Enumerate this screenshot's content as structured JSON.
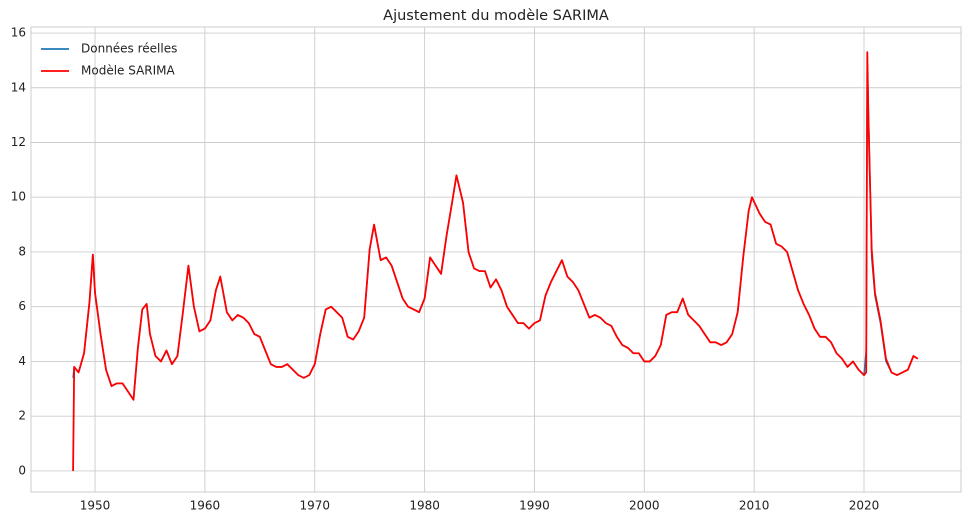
{
  "chart_data": {
    "type": "line",
    "title": "Ajustement du modèle SARIMA",
    "x": [
      1948.0,
      1948.1,
      1948.5,
      1949.0,
      1949.5,
      1949.8,
      1950.0,
      1950.5,
      1951.0,
      1951.5,
      1952.0,
      1952.5,
      1953.0,
      1953.5,
      1953.9,
      1954.3,
      1954.7,
      1955.0,
      1955.5,
      1956.0,
      1956.5,
      1957.0,
      1957.5,
      1958.0,
      1958.5,
      1959.0,
      1959.5,
      1960.0,
      1960.5,
      1961.0,
      1961.4,
      1962.0,
      1962.5,
      1963.0,
      1963.5,
      1964.0,
      1964.5,
      1965.0,
      1965.5,
      1966.0,
      1966.5,
      1967.0,
      1967.5,
      1968.0,
      1968.5,
      1969.0,
      1969.5,
      1970.0,
      1970.5,
      1971.0,
      1971.5,
      1972.0,
      1972.5,
      1973.0,
      1973.5,
      1974.0,
      1974.5,
      1975.0,
      1975.4,
      1976.0,
      1976.5,
      1977.0,
      1977.5,
      1978.0,
      1978.5,
      1979.0,
      1979.5,
      1980.0,
      1980.5,
      1981.0,
      1981.5,
      1982.0,
      1982.5,
      1982.9,
      1983.5,
      1984.0,
      1984.5,
      1985.0,
      1985.5,
      1986.0,
      1986.5,
      1987.0,
      1987.5,
      1988.0,
      1988.5,
      1989.0,
      1989.5,
      1990.0,
      1990.5,
      1991.0,
      1991.5,
      1992.0,
      1992.5,
      1993.0,
      1993.5,
      1994.0,
      1994.5,
      1995.0,
      1995.5,
      1996.0,
      1996.5,
      1997.0,
      1997.5,
      1998.0,
      1998.5,
      1999.0,
      1999.5,
      2000.0,
      2000.5,
      2001.0,
      2001.5,
      2002.0,
      2002.5,
      2003.0,
      2003.5,
      2004.0,
      2004.5,
      2005.0,
      2005.5,
      2006.0,
      2006.5,
      2007.0,
      2007.5,
      2008.0,
      2008.5,
      2009.0,
      2009.5,
      2009.8,
      2010.5,
      2011.0,
      2011.5,
      2012.0,
      2012.5,
      2013.0,
      2013.5,
      2014.0,
      2014.5,
      2015.0,
      2015.5,
      2016.0,
      2016.5,
      2017.0,
      2017.5,
      2018.0,
      2018.5,
      2019.0,
      2019.5,
      2020.0,
      2020.2,
      2020.3,
      2020.4,
      2020.7,
      2021.0,
      2021.5,
      2022.0,
      2022.5,
      2023.0,
      2023.5,
      2024.0,
      2024.5,
      2024.9
    ],
    "series": [
      {
        "name": "Données réelles",
        "color": "#1f77b4",
        "values": [
          3.4,
          3.8,
          3.6,
          4.3,
          6.2,
          7.9,
          6.5,
          5.0,
          3.7,
          3.1,
          3.2,
          3.2,
          2.9,
          2.6,
          4.5,
          5.9,
          6.1,
          5.0,
          4.2,
          4.0,
          4.4,
          3.9,
          4.2,
          5.8,
          7.5,
          6.0,
          5.1,
          5.2,
          5.5,
          6.6,
          7.1,
          5.8,
          5.5,
          5.7,
          5.6,
          5.4,
          5.0,
          4.9,
          4.4,
          3.9,
          3.8,
          3.8,
          3.9,
          3.7,
          3.5,
          3.4,
          3.5,
          3.9,
          5.0,
          5.9,
          6.0,
          5.8,
          5.6,
          4.9,
          4.8,
          5.1,
          5.6,
          8.1,
          9.0,
          7.7,
          7.8,
          7.5,
          6.9,
          6.3,
          6.0,
          5.9,
          5.8,
          6.3,
          7.8,
          7.5,
          7.2,
          8.6,
          9.8,
          10.8,
          9.8,
          8.0,
          7.4,
          7.3,
          7.3,
          6.7,
          7.0,
          6.6,
          6.0,
          5.7,
          5.4,
          5.4,
          5.2,
          5.4,
          5.5,
          6.4,
          6.9,
          7.3,
          7.7,
          7.1,
          6.9,
          6.6,
          6.1,
          5.6,
          5.7,
          5.6,
          5.4,
          5.3,
          4.9,
          4.6,
          4.5,
          4.3,
          4.3,
          4.0,
          4.0,
          4.2,
          4.6,
          5.7,
          5.8,
          5.8,
          6.3,
          5.7,
          5.5,
          5.3,
          5.0,
          4.7,
          4.7,
          4.6,
          4.7,
          5.0,
          5.8,
          7.8,
          9.5,
          10.0,
          9.4,
          9.1,
          9.0,
          8.3,
          8.2,
          8.0,
          7.3,
          6.6,
          6.1,
          5.7,
          5.2,
          4.9,
          4.9,
          4.7,
          4.3,
          4.1,
          3.8,
          4.0,
          3.7,
          3.5,
          4.4,
          14.8,
          13.2,
          7.8,
          6.4,
          5.4,
          4.0,
          3.6,
          3.5,
          3.6,
          3.7,
          4.2,
          4.1
        ]
      },
      {
        "name": "Modèle SARIMA",
        "color": "#ff0000",
        "values": [
          0,
          3.8,
          3.6,
          4.3,
          6.2,
          7.9,
          6.5,
          5.0,
          3.7,
          3.1,
          3.2,
          3.2,
          2.9,
          2.6,
          4.5,
          5.9,
          6.1,
          5.0,
          4.2,
          4.0,
          4.4,
          3.9,
          4.2,
          5.8,
          7.5,
          6.0,
          5.1,
          5.2,
          5.5,
          6.6,
          7.1,
          5.8,
          5.5,
          5.7,
          5.6,
          5.4,
          5.0,
          4.9,
          4.4,
          3.9,
          3.8,
          3.8,
          3.9,
          3.7,
          3.5,
          3.4,
          3.5,
          3.9,
          5.0,
          5.9,
          6.0,
          5.8,
          5.6,
          4.9,
          4.8,
          5.1,
          5.6,
          8.1,
          9.0,
          7.7,
          7.8,
          7.5,
          6.9,
          6.3,
          6.0,
          5.9,
          5.8,
          6.3,
          7.8,
          7.5,
          7.2,
          8.6,
          9.8,
          10.8,
          9.8,
          8.0,
          7.4,
          7.3,
          7.3,
          6.7,
          7.0,
          6.6,
          6.0,
          5.7,
          5.4,
          5.4,
          5.2,
          5.4,
          5.5,
          6.4,
          6.9,
          7.3,
          7.7,
          7.1,
          6.9,
          6.6,
          6.1,
          5.6,
          5.7,
          5.6,
          5.4,
          5.3,
          4.9,
          4.6,
          4.5,
          4.3,
          4.3,
          4.0,
          4.0,
          4.2,
          4.6,
          5.7,
          5.8,
          5.8,
          6.3,
          5.7,
          5.5,
          5.3,
          5.0,
          4.7,
          4.7,
          4.6,
          4.7,
          5.0,
          5.8,
          7.8,
          9.5,
          10.0,
          9.4,
          9.1,
          9.0,
          8.3,
          8.2,
          8.0,
          7.3,
          6.6,
          6.1,
          5.7,
          5.2,
          4.9,
          4.9,
          4.7,
          4.3,
          4.1,
          3.8,
          4.0,
          3.7,
          3.5,
          3.6,
          15.3,
          12.9,
          8.1,
          6.5,
          5.5,
          4.1,
          3.6,
          3.5,
          3.6,
          3.7,
          4.2,
          4.1
        ]
      }
    ],
    "xlim": [
      1944.17,
      2028.83
    ],
    "xticks": [
      1950,
      1960,
      1970,
      1980,
      1990,
      2000,
      2010,
      2020
    ],
    "ylim": [
      -0.77,
      16.22
    ],
    "yticks": [
      0,
      2,
      4,
      6,
      8,
      10,
      12,
      14,
      16
    ],
    "grid": true,
    "legend": "upper-left"
  }
}
